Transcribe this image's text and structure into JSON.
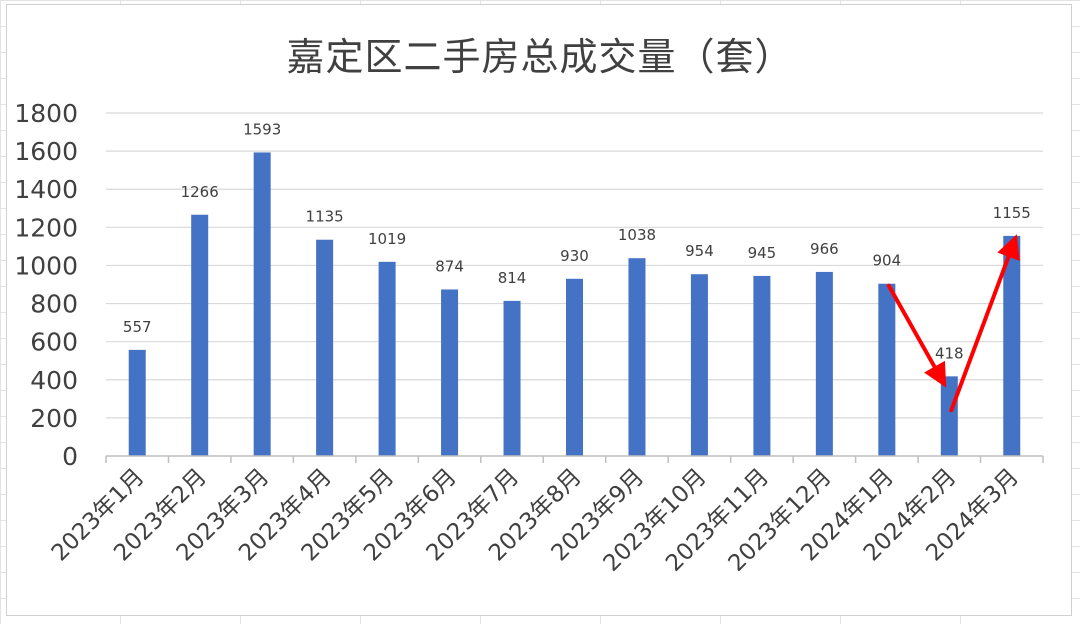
{
  "chart_data": {
    "type": "bar",
    "title": "嘉定区二手房总成交量（套）",
    "xlabel": "",
    "ylabel": "",
    "categories": [
      "2023年1月",
      "2023年2月",
      "2023年3月",
      "2023年4月",
      "2023年5月",
      "2023年6月",
      "2023年7月",
      "2023年8月",
      "2023年9月",
      "2023年10月",
      "2023年11月",
      "2023年12月",
      "2024年1月",
      "2024年2月",
      "2024年3月"
    ],
    "series": [
      {
        "values": [
          557,
          1266,
          1593,
          1135,
          1019,
          874,
          814,
          930,
          1038,
          954,
          945,
          966,
          904,
          418,
          1155
        ]
      }
    ],
    "ylim": [
      0,
      1800
    ],
    "yticks": [
      0,
      200,
      400,
      600,
      800,
      1000,
      1200,
      1400,
      1600,
      1800
    ],
    "grid": true,
    "legend": "none",
    "data_labels": true,
    "annotations": [
      {
        "kind": "arrow",
        "from": "2024年1月",
        "to": "2024年2月",
        "direction": "down"
      },
      {
        "kind": "arrow",
        "from": "2024年2月",
        "to": "2024年3月",
        "direction": "up"
      }
    ],
    "colors": {
      "bar": "#4472c4",
      "arrow": "#ff0000",
      "gridline": "#d9d9d9",
      "text": "#404040"
    }
  }
}
